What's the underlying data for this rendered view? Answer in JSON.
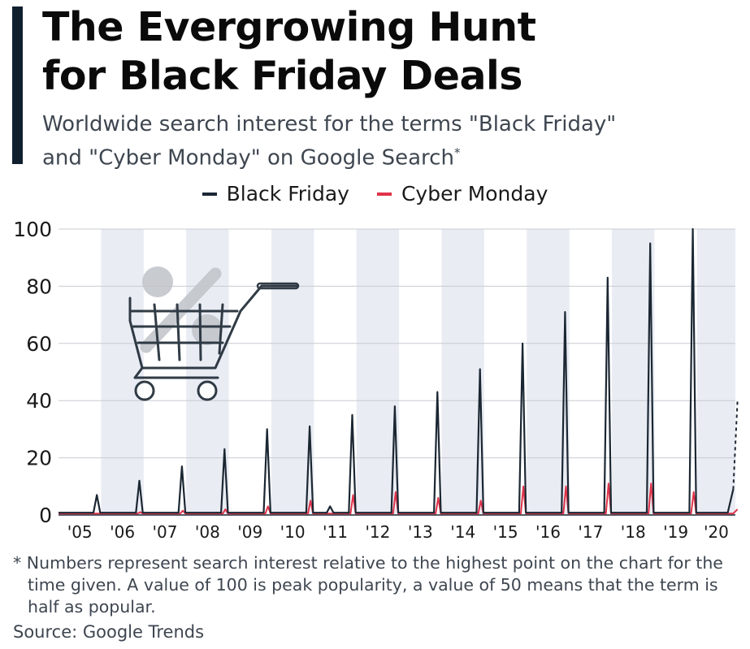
{
  "header": {
    "title_line1": "The Evergrowing Hunt",
    "title_line2": "for Black Friday Deals",
    "subtitle_line1": "Worldwide search interest for the terms \"Black Friday\"",
    "subtitle_line2": "and \"Cyber Monday\" on Google Search",
    "subtitle_mark": "*"
  },
  "colors": {
    "black_friday": "#1b2733",
    "cyber_monday": "#e0334a",
    "band": "#e9ecf3",
    "grid": "#c8ccd2",
    "accent_bar": "#0f1f2e"
  },
  "icons": [
    "shopping-cart-icon",
    "percent-icon"
  ],
  "chart_data": {
    "type": "line",
    "x_unit": "year",
    "xlim": [
      2005,
      2020.9
    ],
    "ylim": [
      0,
      100
    ],
    "yticks": [
      0,
      20,
      40,
      60,
      80,
      100
    ],
    "xtick_labels": [
      "'05",
      "'06",
      "'07",
      "'08",
      "'09",
      "'10",
      "'11",
      "'12",
      "'13",
      "'14",
      "'15",
      "'16",
      "'17",
      "'18",
      "'19",
      "'20"
    ],
    "grid": true,
    "legend_position": "top",
    "series": [
      {
        "name": "Black Friday",
        "color": "#1b2733",
        "peaks": [
          {
            "x": 2005.9,
            "y": 7
          },
          {
            "x": 2006.9,
            "y": 12
          },
          {
            "x": 2007.9,
            "y": 17
          },
          {
            "x": 2008.9,
            "y": 23
          },
          {
            "x": 2009.9,
            "y": 30
          },
          {
            "x": 2010.9,
            "y": 31
          },
          {
            "x": 2011.9,
            "y": 35
          },
          {
            "x": 2012.9,
            "y": 38
          },
          {
            "x": 2013.9,
            "y": 43
          },
          {
            "x": 2014.9,
            "y": 51
          },
          {
            "x": 2015.9,
            "y": 60
          },
          {
            "x": 2016.9,
            "y": 71
          },
          {
            "x": 2017.9,
            "y": 83
          },
          {
            "x": 2018.9,
            "y": 95
          },
          {
            "x": 2019.9,
            "y": 100
          }
        ],
        "minor": [
          {
            "x": 2011.38,
            "y": 3
          }
        ],
        "last_observed": {
          "x": 2020.85,
          "y": 9
        },
        "projected": {
          "x": 2020.95,
          "y": 40
        }
      },
      {
        "name": "Cyber Monday",
        "color": "#e0334a",
        "peaks": [
          {
            "x": 2005.92,
            "y": 0.5
          },
          {
            "x": 2006.92,
            "y": 1
          },
          {
            "x": 2007.92,
            "y": 1.5
          },
          {
            "x": 2008.92,
            "y": 2
          },
          {
            "x": 2009.92,
            "y": 3
          },
          {
            "x": 2010.92,
            "y": 5
          },
          {
            "x": 2011.92,
            "y": 7
          },
          {
            "x": 2012.92,
            "y": 8
          },
          {
            "x": 2013.92,
            "y": 6
          },
          {
            "x": 2014.92,
            "y": 5
          },
          {
            "x": 2015.92,
            "y": 10
          },
          {
            "x": 2016.92,
            "y": 10
          },
          {
            "x": 2017.92,
            "y": 11
          },
          {
            "x": 2018.92,
            "y": 11
          },
          {
            "x": 2019.92,
            "y": 8
          }
        ],
        "last_observed": {
          "x": 2020.95,
          "y": 2
        }
      }
    ]
  },
  "footnote": {
    "line1": "* Numbers represent search interest relative to the highest point on the chart for the time given. A value of 100 is peak popularity, a value of 50 means that the term is half as popular."
  },
  "source": "Source: Google Trends"
}
